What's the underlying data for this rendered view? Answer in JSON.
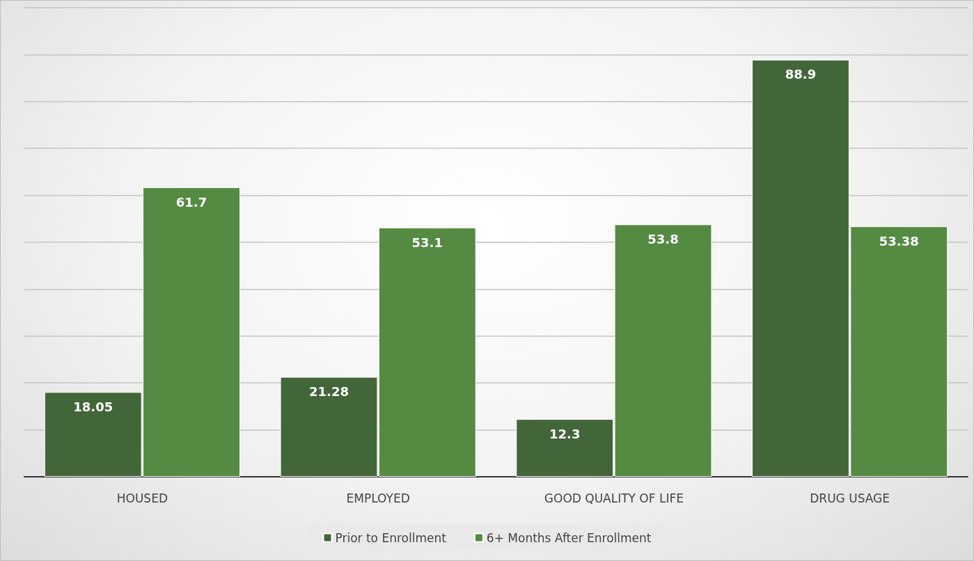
{
  "chart_data": {
    "type": "bar",
    "categories": [
      "HOUSED",
      "EMPLOYED",
      "GOOD QUALITY OF LIFE",
      "DRUG USAGE"
    ],
    "series": [
      {
        "name": "Prior to Enrollment",
        "color": "#42663a",
        "values": [
          18.05,
          21.28,
          12.3,
          88.9
        ]
      },
      {
        "name": "6+ Months After Enrollment",
        "color": "#548a42",
        "values": [
          61.7,
          53.1,
          53.8,
          53.38
        ]
      }
    ],
    "ylim": [
      0,
      100
    ],
    "yticks": [
      {
        "value": 0,
        "label": null
      },
      {
        "value": 10,
        "label": null
      },
      {
        "value": 20,
        "label": null
      },
      {
        "value": 30,
        "label": null
      },
      {
        "value": 40,
        "label": null
      },
      {
        "value": 50,
        "label": null
      },
      {
        "value": 60,
        "label": null
      },
      {
        "value": 70,
        "label": null
      },
      {
        "value": 80,
        "label": null
      },
      {
        "value": 90,
        "label": null
      },
      {
        "value": 100,
        "label": null
      }
    ],
    "tick_labels": "x",
    "grid": "y",
    "data_labels": true,
    "legend": "bottom"
  }
}
